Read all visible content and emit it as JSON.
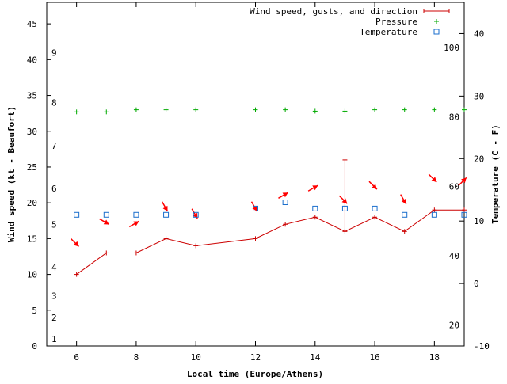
{
  "chart_data": {
    "type": "line",
    "xlabel": "Local time (Europe/Athens)",
    "ylabel": "Wind speed (kt - Beaufort)",
    "y2label": "Temperature (C - F)",
    "xlim": [
      5,
      19
    ],
    "ylim": [
      0,
      48
    ],
    "y2lim": [
      -10,
      45
    ],
    "x_ticks": [
      6,
      8,
      10,
      12,
      14,
      16,
      18
    ],
    "y_ticks": [
      0,
      5,
      10,
      15,
      20,
      25,
      30,
      35,
      40,
      45
    ],
    "y2_ticks": [
      -10,
      0,
      10,
      20,
      30,
      40
    ],
    "beaufort_labels": [
      {
        "label": "1",
        "kt": 1
      },
      {
        "label": "2",
        "kt": 4
      },
      {
        "label": "3",
        "kt": 7
      },
      {
        "label": "4",
        "kt": 11
      },
      {
        "label": "5",
        "kt": 17
      },
      {
        "label": "6",
        "kt": 22
      },
      {
        "label": "7",
        "kt": 28
      },
      {
        "label": "8",
        "kt": 34
      },
      {
        "label": "9",
        "kt": 41
      }
    ],
    "fahrenheit_labels": [
      {
        "label": "20",
        "c": -6.67
      },
      {
        "label": "40",
        "c": 4.44
      },
      {
        "label": "60",
        "c": 15.56
      },
      {
        "label": "80",
        "c": 26.67
      },
      {
        "label": "100",
        "c": 37.78
      }
    ],
    "legend": [
      "Wind speed, gusts, and direction",
      "Pressure",
      "Temperature"
    ],
    "legend_position": "top-right",
    "series": [
      {
        "name": "Wind speed, gusts, and direction",
        "color": "#cc0000",
        "x": [
          6,
          7,
          8,
          9,
          10,
          12,
          13,
          14,
          15,
          16,
          17,
          18,
          19
        ],
        "values": [
          10,
          13,
          13,
          15,
          14,
          15,
          17,
          18,
          16,
          18,
          16,
          19,
          19
        ]
      },
      {
        "name": "Gust",
        "color": "#cc0000",
        "x": [
          15
        ],
        "low": [
          16
        ],
        "high": [
          26
        ]
      },
      {
        "name": "Wind direction",
        "color": "#ff0000",
        "x": [
          6,
          7,
          8,
          9,
          10,
          12,
          13,
          14,
          15,
          16,
          17,
          18,
          19
        ],
        "direction_deg": [
          315,
          300,
          240,
          330,
          330,
          330,
          240,
          240,
          315,
          315,
          330,
          315,
          225
        ]
      },
      {
        "name": "Pressure",
        "color": "#00aa00",
        "x": [
          6,
          7,
          8,
          9,
          10,
          12,
          13,
          14,
          15,
          16,
          17,
          18,
          19
        ],
        "values": [
          32.7,
          32.7,
          33,
          33,
          33,
          33,
          33,
          32.8,
          32.8,
          33,
          33,
          33,
          33
        ]
      },
      {
        "name": "Temperature",
        "color": "#1a6ecc",
        "x": [
          6,
          7,
          8,
          9,
          10,
          12,
          13,
          14,
          15,
          16,
          17,
          18,
          19
        ],
        "values_c": [
          11,
          11,
          11,
          11,
          11,
          12,
          13,
          12,
          12,
          12,
          11,
          11,
          11
        ]
      }
    ]
  }
}
